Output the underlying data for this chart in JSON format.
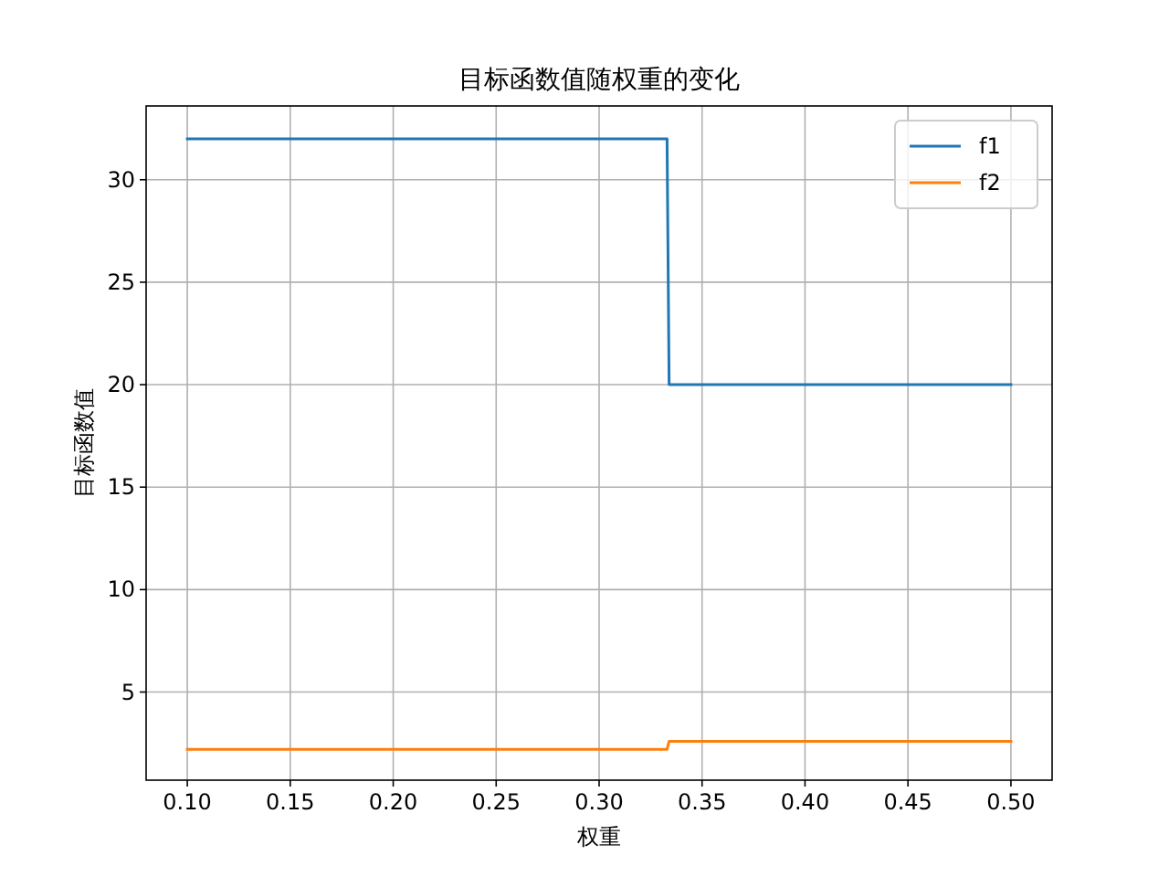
{
  "chart_data": {
    "type": "line",
    "title": "目标函数值随权重的变化",
    "xlabel": "权重",
    "ylabel": "目标函数值",
    "series": [
      {
        "name": "f1",
        "color": "#1f77b4",
        "x": [
          0.1,
          0.333,
          0.334,
          0.5
        ],
        "values": [
          32,
          32,
          20,
          20
        ]
      },
      {
        "name": "f2",
        "color": "#ff7f0e",
        "x": [
          0.1,
          0.333,
          0.334,
          0.5
        ],
        "values": [
          2.2,
          2.2,
          2.6,
          2.6
        ]
      }
    ],
    "xlim": [
      0.08,
      0.52
    ],
    "ylim": [
      0.7,
      33.6
    ],
    "xticks": [
      {
        "value": 0.1,
        "label": "0.10"
      },
      {
        "value": 0.15,
        "label": "0.15"
      },
      {
        "value": 0.2,
        "label": "0.20"
      },
      {
        "value": 0.25,
        "label": "0.25"
      },
      {
        "value": 0.3,
        "label": "0.30"
      },
      {
        "value": 0.35,
        "label": "0.35"
      },
      {
        "value": 0.4,
        "label": "0.40"
      },
      {
        "value": 0.45,
        "label": "0.45"
      },
      {
        "value": 0.5,
        "label": "0.50"
      }
    ],
    "yticks": [
      5,
      10,
      15,
      20,
      25,
      30
    ],
    "grid": true,
    "legend": "top right",
    "line_style": "solid",
    "marker": "none"
  }
}
